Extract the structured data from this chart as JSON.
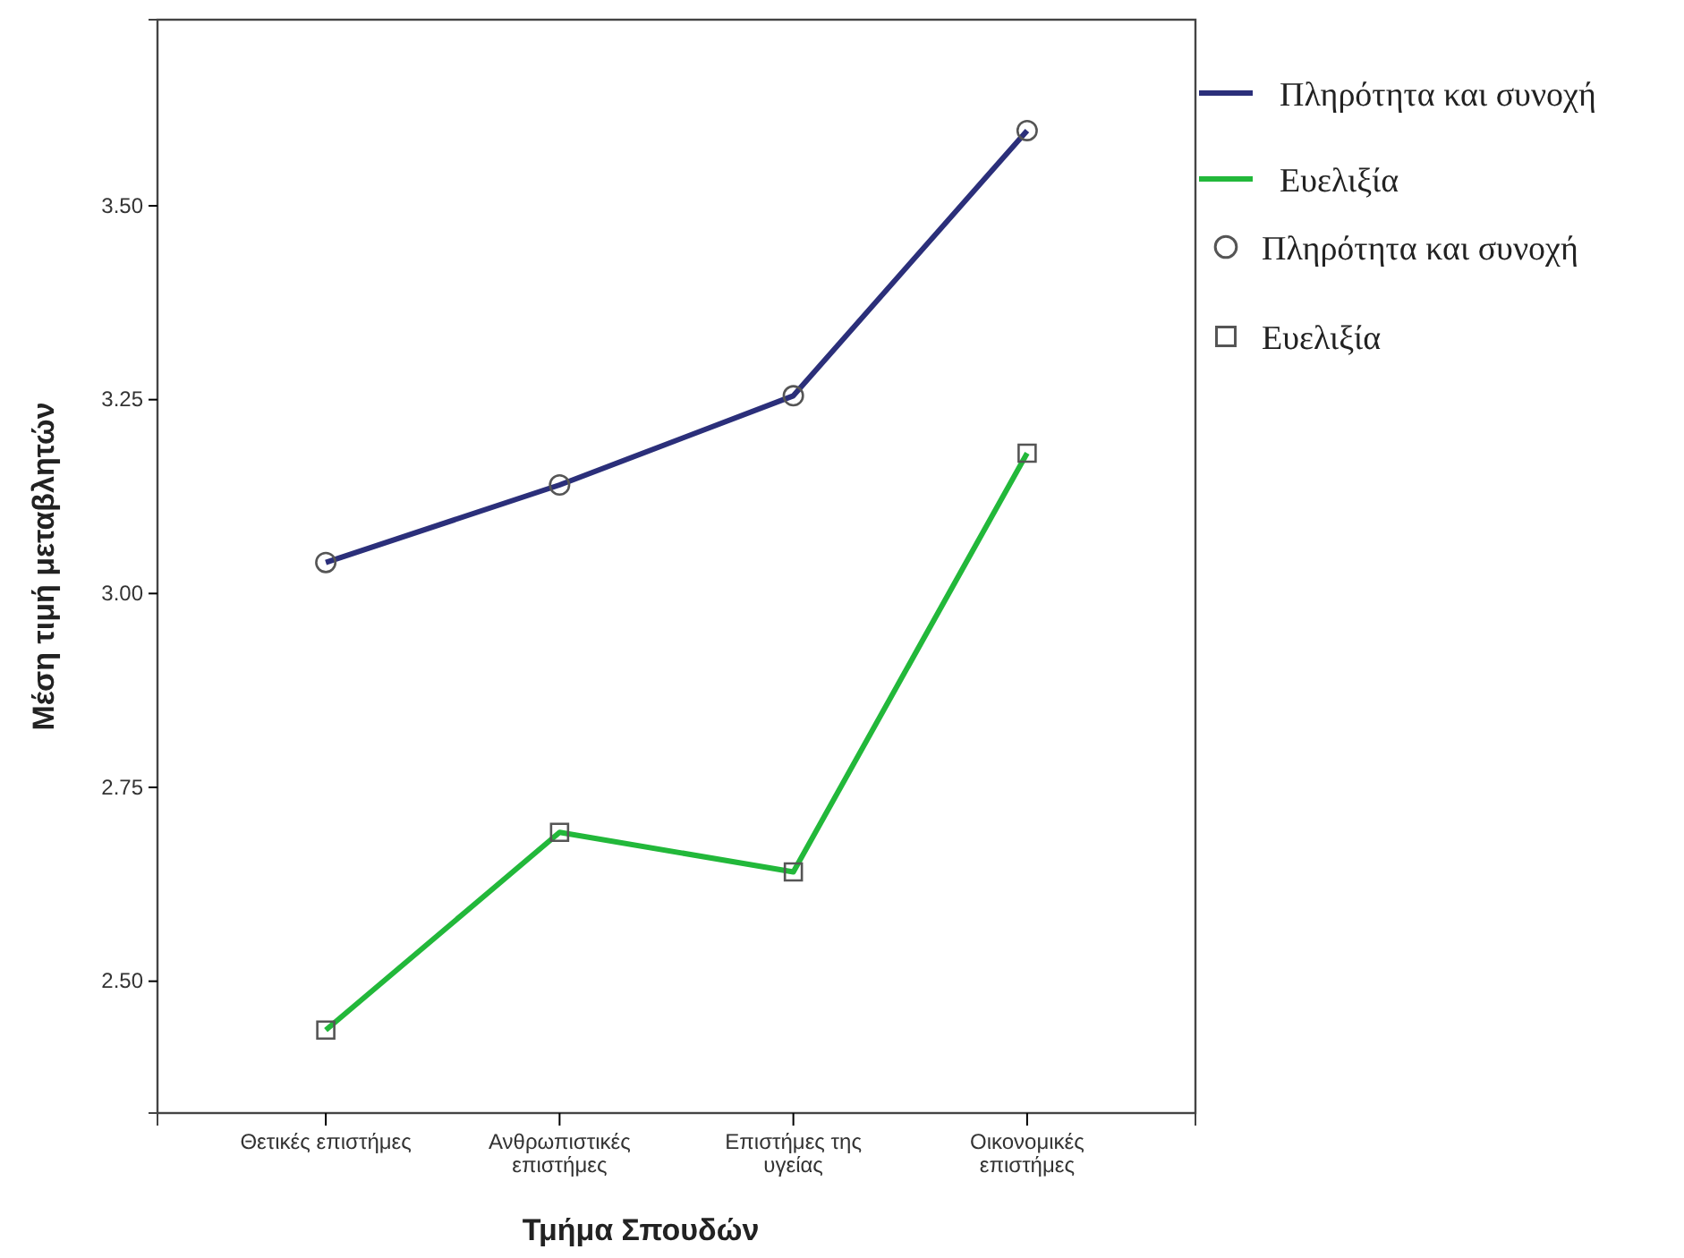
{
  "chart_data": {
    "type": "line",
    "xlabel": "Τμήμα Σπουδών",
    "ylabel": "Μέση τιμή μεταβλητών",
    "categories": [
      "Θετικές επιστήμες",
      "Ανθρωπιστικές επιστήμες",
      "Επιστήμες της υγείας",
      "Οικονομικές επιστήμες"
    ],
    "series": [
      {
        "name": "Πληρότητα και συνοχή",
        "color": "#2b2f7a",
        "marker": "circle",
        "values": [
          3.04,
          3.14,
          3.255,
          3.597
        ]
      },
      {
        "name": "Ευελιξία",
        "color": "#22b83a",
        "marker": "square",
        "values": [
          2.437,
          2.692,
          2.641,
          3.181
        ]
      }
    ],
    "ylim": [
      2.33,
      3.74
    ],
    "yticks": [
      {
        "value": 2.5,
        "label": "2.50"
      },
      {
        "value": 2.75,
        "label": "2.75"
      },
      {
        "value": 3.0,
        "label": "3.00"
      },
      {
        "value": 3.25,
        "label": "3.25"
      },
      {
        "value": 3.5,
        "label": "3.50"
      }
    ],
    "grid": false,
    "legend": "top right",
    "line_style": "solid"
  }
}
